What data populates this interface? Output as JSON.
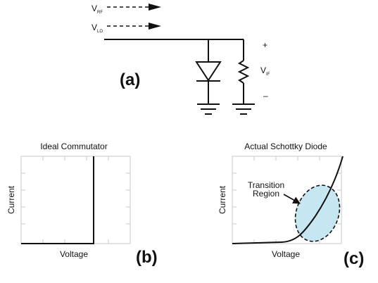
{
  "circuit": {
    "label": "(a)",
    "inputs": [
      {
        "main": "V",
        "sub": "RF"
      },
      {
        "main": "V",
        "sub": "LO"
      }
    ],
    "output": {
      "main": "V",
      "sub": "IF"
    },
    "plus": "+",
    "minus": "–"
  },
  "panel_b": {
    "label": "(b)",
    "title": "Ideal Commutator",
    "xlabel": "Voltage",
    "ylabel": "Current"
  },
  "panel_c": {
    "label": "(c)",
    "title": "Actual Schottky Diode",
    "xlabel": "Voltage",
    "ylabel": "Current",
    "annotation_line1": "Transition",
    "annotation_line2": "Region",
    "region_color": "#c6e6f2"
  },
  "colors": {
    "line": "#111111",
    "grid": "#c8c8c8",
    "curve_c": "#111111"
  }
}
